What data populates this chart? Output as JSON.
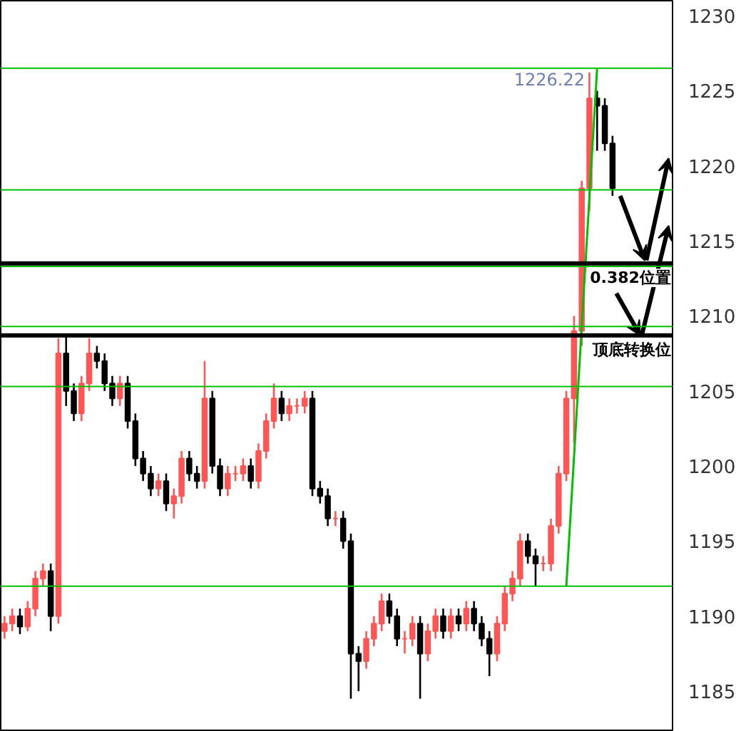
{
  "chart_data": {
    "type": "candlestick",
    "categories": [
      null,
      null,
      null,
      null,
      null,
      null,
      null,
      null,
      null,
      null,
      null,
      null,
      null,
      null,
      null,
      null,
      null,
      null,
      null,
      null,
      null,
      null,
      null,
      null,
      null,
      null,
      null,
      null,
      null,
      null,
      null,
      null,
      null,
      null,
      null,
      null,
      null,
      null,
      null,
      null,
      null,
      null,
      null,
      null,
      null,
      null,
      null,
      null,
      null,
      null,
      null,
      null,
      null,
      null,
      null,
      null,
      null,
      null,
      null,
      null,
      null,
      null,
      null,
      null,
      null,
      null,
      null,
      null,
      null,
      null,
      null,
      null,
      null,
      null,
      null,
      null,
      null,
      null,
      null,
      null
    ],
    "ohlc": [
      [
        1189.0,
        1190.0,
        1188.5,
        1189.5
      ],
      [
        1189.5,
        1190.5,
        1189.0,
        1190.0
      ],
      [
        1190.0,
        1190.5,
        1188.8,
        1189.3
      ],
      [
        1189.3,
        1191.0,
        1189.0,
        1190.5
      ],
      [
        1190.5,
        1193.0,
        1190.0,
        1192.5
      ],
      [
        1192.5,
        1193.5,
        1192.0,
        1193.0
      ],
      [
        1193.0,
        1193.5,
        1189.0,
        1190.0
      ],
      [
        1190.0,
        1208.5,
        1189.5,
        1207.5
      ],
      [
        1207.5,
        1208.7,
        1204.0,
        1205.0
      ],
      [
        1205.0,
        1205.5,
        1203.0,
        1203.5
      ],
      [
        1203.5,
        1206.0,
        1203.0,
        1205.5
      ],
      [
        1205.5,
        1208.5,
        1205.0,
        1207.5
      ],
      [
        1207.5,
        1208.0,
        1206.5,
        1207.0
      ],
      [
        1207.0,
        1207.5,
        1205.0,
        1205.5
      ],
      [
        1205.5,
        1206.0,
        1204.0,
        1204.5
      ],
      [
        1204.5,
        1206.0,
        1204.0,
        1205.5
      ],
      [
        1205.5,
        1206.0,
        1202.5,
        1203.0
      ],
      [
        1203.0,
        1203.5,
        1200.0,
        1200.5
      ],
      [
        1200.5,
        1201.0,
        1199.0,
        1199.5
      ],
      [
        1199.5,
        1200.0,
        1198.0,
        1198.5
      ],
      [
        1198.5,
        1199.5,
        1198.0,
        1199.0
      ],
      [
        1199.0,
        1199.5,
        1197.0,
        1197.5
      ],
      [
        1197.5,
        1198.5,
        1196.5,
        1198.0
      ],
      [
        1198.0,
        1201.0,
        1197.5,
        1200.5
      ],
      [
        1200.5,
        1201.0,
        1199.0,
        1199.5
      ],
      [
        1199.5,
        1200.0,
        1198.5,
        1199.0
      ],
      [
        1199.0,
        1207.0,
        1198.5,
        1204.5
      ],
      [
        1204.5,
        1205.0,
        1199.5,
        1200.0
      ],
      [
        1200.0,
        1200.5,
        1198.0,
        1198.5
      ],
      [
        1198.5,
        1200.0,
        1198.0,
        1199.5
      ],
      [
        1199.5,
        1200.0,
        1199.0,
        1199.5
      ],
      [
        1199.5,
        1200.5,
        1199.0,
        1200.0
      ],
      [
        1200.0,
        1200.5,
        1198.5,
        1199.0
      ],
      [
        1199.0,
        1201.5,
        1198.5,
        1201.0
      ],
      [
        1201.0,
        1203.5,
        1200.5,
        1203.0
      ],
      [
        1203.0,
        1205.5,
        1202.5,
        1204.5
      ],
      [
        1204.5,
        1205.0,
        1203.0,
        1203.5
      ],
      [
        1203.5,
        1204.5,
        1203.0,
        1204.0
      ],
      [
        1204.0,
        1204.5,
        1203.5,
        1204.0
      ],
      [
        1204.0,
        1205.0,
        1203.5,
        1204.5
      ],
      [
        1204.5,
        1205.0,
        1198.0,
        1198.5
      ],
      [
        1198.5,
        1199.0,
        1197.5,
        1198.0
      ],
      [
        1198.0,
        1198.5,
        1196.0,
        1196.5
      ],
      [
        1196.5,
        1197.0,
        1196.0,
        1196.5
      ],
      [
        1196.5,
        1197.0,
        1194.5,
        1195.0
      ],
      [
        1195.0,
        1195.5,
        1184.5,
        1187.5
      ],
      [
        1187.5,
        1188.0,
        1185.0,
        1187.0
      ],
      [
        1187.0,
        1189.0,
        1186.5,
        1188.5
      ],
      [
        1188.5,
        1190.0,
        1188.0,
        1189.5
      ],
      [
        1189.5,
        1191.5,
        1189.0,
        1191.0
      ],
      [
        1191.0,
        1191.5,
        1189.5,
        1190.0
      ],
      [
        1190.0,
        1190.5,
        1188.0,
        1188.5
      ],
      [
        1188.5,
        1189.0,
        1187.5,
        1188.5
      ],
      [
        1188.5,
        1190.0,
        1188.0,
        1189.5
      ],
      [
        1189.5,
        1190.0,
        1184.5,
        1187.5
      ],
      [
        1187.5,
        1189.5,
        1187.0,
        1189.0
      ],
      [
        1189.0,
        1190.5,
        1188.5,
        1190.0
      ],
      [
        1190.0,
        1190.5,
        1188.5,
        1189.0
      ],
      [
        1189.0,
        1190.5,
        1188.5,
        1190.0
      ],
      [
        1190.0,
        1190.5,
        1189.0,
        1189.5
      ],
      [
        1189.5,
        1191.0,
        1189.0,
        1190.5
      ],
      [
        1190.5,
        1191.0,
        1189.0,
        1189.5
      ],
      [
        1189.5,
        1190.0,
        1188.0,
        1188.5
      ],
      [
        1188.5,
        1189.0,
        1186.0,
        1187.5
      ],
      [
        1187.5,
        1190.0,
        1187.0,
        1189.5
      ],
      [
        1189.5,
        1192.0,
        1189.0,
        1191.5
      ],
      [
        1191.5,
        1193.0,
        1191.0,
        1192.5
      ],
      [
        1192.5,
        1195.5,
        1192.0,
        1195.0
      ],
      [
        1195.0,
        1195.5,
        1193.5,
        1194.0
      ],
      [
        1194.0,
        1194.5,
        1192.0,
        1193.5
      ],
      [
        1193.5,
        1194.0,
        1193.0,
        1193.5
      ],
      [
        1193.5,
        1196.5,
        1193.0,
        1196.0
      ],
      [
        1196.0,
        1200.0,
        1195.5,
        1199.5
      ],
      [
        1199.5,
        1205.0,
        1199.0,
        1204.5
      ],
      [
        1204.5,
        1210.0,
        1201.5,
        1209.0
      ],
      [
        1209.0,
        1219.0,
        1208.0,
        1218.5
      ],
      [
        1218.5,
        1226.22,
        1217.0,
        1224.5
      ],
      [
        1224.5,
        1225.0,
        1221.0,
        1224.0
      ],
      [
        1224.0,
        1224.5,
        1221.0,
        1221.5
      ],
      [
        1221.5,
        1222.0,
        1218.0,
        1218.5
      ]
    ],
    "colors": [
      "#ff5555",
      "#ff5555",
      "#000000",
      "#ff5555",
      "#ff5555",
      "#ff5555",
      "#000000",
      "#ff5555",
      "#000000",
      "#000000",
      "#ff5555",
      "#ff5555",
      "#000000",
      "#000000",
      "#000000",
      "#ff5555",
      "#000000",
      "#000000",
      "#000000",
      "#000000",
      "#ff5555",
      "#000000",
      "#ff5555",
      "#ff5555",
      "#000000",
      "#000000",
      "#ff5555",
      "#000000",
      "#000000",
      "#ff5555",
      "#ff5555",
      "#ff5555",
      "#000000",
      "#ff5555",
      "#ff5555",
      "#ff5555",
      "#000000",
      "#ff5555",
      "#ff5555",
      "#ff5555",
      "#000000",
      "#000000",
      "#000000",
      "#ff5555",
      "#000000",
      "#000000",
      "#000000",
      "#ff5555",
      "#ff5555",
      "#ff5555",
      "#000000",
      "#000000",
      "#ff5555",
      "#ff5555",
      "#000000",
      "#ff5555",
      "#ff5555",
      "#000000",
      "#ff5555",
      "#000000",
      "#ff5555",
      "#000000",
      "#000000",
      "#000000",
      "#ff5555",
      "#ff5555",
      "#ff5555",
      "#ff5555",
      "#000000",
      "#000000",
      "#ff5555",
      "#ff5555",
      "#ff5555",
      "#ff5555",
      "#ff5555",
      "#ff5555",
      "#ff5555",
      "#000000",
      "#000000",
      "#000000"
    ],
    "series": [
      {
        "type": "line",
        "values": [
          null,
          null,
          null,
          null,
          null,
          null,
          null,
          null,
          null,
          null,
          null,
          null,
          null,
          null,
          null,
          null,
          null,
          null,
          null,
          null,
          null,
          null,
          null,
          null,
          null,
          null,
          null,
          null,
          null,
          null,
          null,
          null,
          null,
          null,
          null,
          null,
          null,
          null,
          null,
          null,
          null,
          null,
          null,
          null,
          null,
          null,
          null,
          null,
          null,
          null,
          null,
          null,
          null,
          null,
          null,
          null,
          null,
          null,
          null,
          null,
          null,
          null,
          null,
          null,
          null,
          null,
          null,
          null,
          null,
          null,
          null,
          null,
          null,
          1192.0,
          1200.6,
          1209.3,
          1217.9,
          1226.5,
          null,
          null
        ],
        "color": "#00c000"
      }
    ],
    "ylim": [
      1182.3,
      1231.0
    ],
    "yticks": [
      1185,
      1190,
      1195,
      1200,
      1205,
      1210,
      1215,
      1220,
      1225,
      1230
    ],
    "ref_lines": [
      {
        "axis": "y",
        "value": 1226.5,
        "color": "#00c000"
      },
      {
        "axis": "y",
        "value": 1218.4,
        "color": "#00c000"
      },
      {
        "axis": "y",
        "value": 1213.3,
        "color": "#00c000"
      },
      {
        "axis": "y",
        "value": 1209.3,
        "color": "#00c000"
      },
      {
        "axis": "y",
        "value": 1205.3,
        "color": "#00c000"
      },
      {
        "axis": "y",
        "value": 1192.0,
        "color": "#00c000"
      },
      {
        "axis": "y",
        "value": 1213.5,
        "color": "#000000",
        "label": "0.382位置"
      },
      {
        "axis": "y",
        "value": 1208.7,
        "color": "#000000",
        "label": "顶底转换位"
      }
    ],
    "annotations": [
      {
        "text": "1226.22",
        "y": 1226.22
      }
    ],
    "grid": false
  }
}
